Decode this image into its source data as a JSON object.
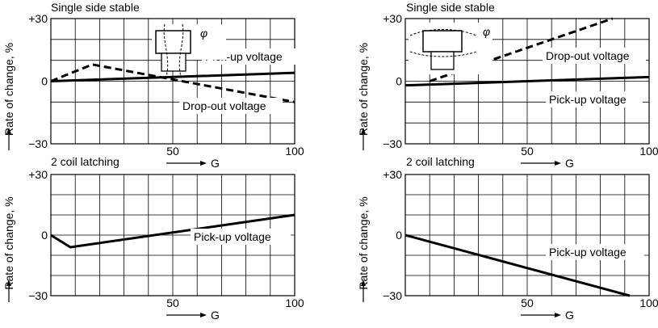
{
  "chart_data": [
    {
      "type": "line",
      "title": "Single side stable",
      "xlabel": "G",
      "ylabel": "Rate of change, %",
      "xlim": [
        0,
        100
      ],
      "ylim": [
        -30,
        30
      ],
      "x_ticks": [
        "50",
        "100"
      ],
      "y_ticks": [
        "+30",
        "0",
        "−30"
      ],
      "grid": true,
      "inset_label": "φ",
      "series": [
        {
          "name": "Pick-up voltage",
          "style": "solid",
          "x": [
            0,
            100
          ],
          "y": [
            0,
            4
          ]
        },
        {
          "name": "Drop-out voltage",
          "style": "dashed",
          "x": [
            0,
            17,
            100
          ],
          "y": [
            0,
            8,
            -10
          ]
        }
      ]
    },
    {
      "type": "line",
      "title": "Single side stable",
      "xlabel": "G",
      "ylabel": "Rate of change, %",
      "xlim": [
        0,
        100
      ],
      "ylim": [
        -30,
        30
      ],
      "x_ticks": [
        "50",
        "100"
      ],
      "y_ticks": [
        "+30",
        "0",
        "−30"
      ],
      "grid": true,
      "inset_label": "φ",
      "series": [
        {
          "name": "Drop-out voltage",
          "style": "dashed",
          "x": [
            10,
            85
          ],
          "y": [
            0,
            30
          ]
        },
        {
          "name": "Pick-up voltage",
          "style": "solid",
          "x": [
            0,
            100
          ],
          "y": [
            -2,
            2
          ]
        }
      ]
    },
    {
      "type": "line",
      "title": "2 coil latching",
      "xlabel": "G",
      "ylabel": "Rate of change, %",
      "xlim": [
        0,
        100
      ],
      "ylim": [
        -30,
        30
      ],
      "x_ticks": [
        "50",
        "100"
      ],
      "y_ticks": [
        "+30",
        "0",
        "−30"
      ],
      "grid": true,
      "series": [
        {
          "name": "Pick-up voltage",
          "style": "solid",
          "x": [
            0,
            8,
            100
          ],
          "y": [
            0,
            -6,
            10
          ]
        }
      ]
    },
    {
      "type": "line",
      "title": "2 coil latching",
      "xlabel": "G",
      "ylabel": "Rate of change, %",
      "xlim": [
        0,
        100
      ],
      "ylim": [
        -30,
        30
      ],
      "x_ticks": [
        "50",
        "100"
      ],
      "y_ticks": [
        "+30",
        "0",
        "−30"
      ],
      "grid": true,
      "series": [
        {
          "name": "Pick-up voltage",
          "style": "solid",
          "x": [
            0,
            92
          ],
          "y": [
            0,
            -30
          ]
        }
      ]
    }
  ]
}
